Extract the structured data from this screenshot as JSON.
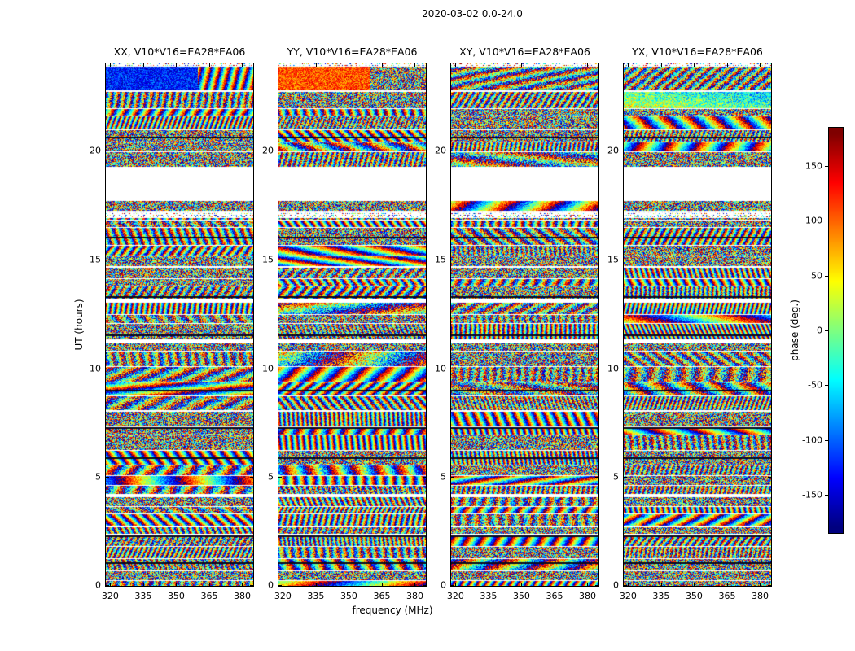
{
  "chart_data": {
    "type": "heatmap",
    "suptitle": "2020-03-02 0.0-24.0",
    "xlabel": "frequency (MHz)",
    "ylabel": "UT (hours)",
    "panels": [
      {
        "title": "XX, V10*V16=EA28*EA06",
        "top_band_bias": "blue"
      },
      {
        "title": "YY, V10*V16=EA28*EA06",
        "top_band_bias": "orange"
      },
      {
        "title": "XY, V10*V16=EA28*EA06",
        "top_band_bias": "none"
      },
      {
        "title": "YX, V10*V16=EA28*EA06",
        "top_band_bias": "none"
      }
    ],
    "x_ticks": [
      320,
      335,
      350,
      365,
      380
    ],
    "x_range": [
      318,
      385
    ],
    "y_ticks": [
      0,
      5,
      10,
      15,
      20
    ],
    "y_range": [
      0,
      24
    ],
    "colorbar": {
      "label": "phase (deg.)",
      "ticks": [
        150,
        100,
        50,
        0,
        -50,
        -100,
        -150
      ],
      "value_range": [
        -185,
        185
      ],
      "colormap": "jet"
    },
    "gaps_ut": [
      [
        17.7,
        19.25
      ]
    ],
    "sparse_bands_ut": [
      [
        23.85,
        24.0
      ],
      [
        16.9,
        17.2
      ]
    ],
    "special_band_ut": [
      22.75,
      23.85
    ],
    "dark_lines_ut": [
      20.65,
      16.05,
      13.3,
      11.55,
      9.0,
      7.3,
      5.9,
      2.3,
      1.1
    ],
    "colors": {
      "background": "#ffffff",
      "axes": "#000000"
    }
  }
}
